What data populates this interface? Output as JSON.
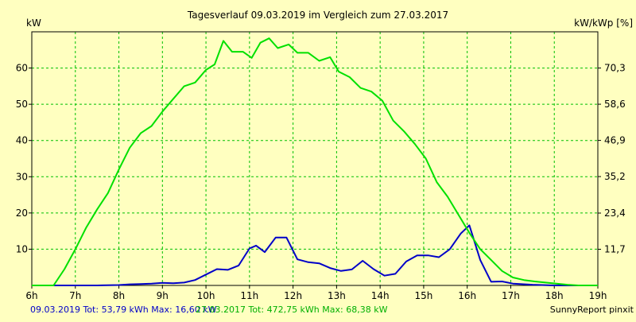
{
  "chart_data": {
    "type": "line",
    "title": "Tagesverlauf 09.03.2019 im Vergleich zum 27.03.2017",
    "ylabel": "kW",
    "y2label": "kW/kWp [%]",
    "xlim": [
      6,
      19
    ],
    "ylim": [
      0,
      70
    ],
    "grid": true,
    "x_ticks": [
      6,
      7,
      8,
      9,
      10,
      11,
      12,
      13,
      14,
      15,
      16,
      17,
      18,
      19
    ],
    "x_tick_labels": [
      "6h",
      "7h",
      "8h",
      "9h",
      "10h",
      "11h",
      "12h",
      "13h",
      "14h",
      "15h",
      "16h",
      "17h",
      "18h",
      "19h"
    ],
    "y_ticks": [
      10,
      20,
      30,
      40,
      50,
      60
    ],
    "y_tick_labels": [
      "10",
      "20",
      "30",
      "40",
      "50",
      "60"
    ],
    "y2_ticks": [
      11.7,
      23.4,
      35.2,
      46.9,
      58.6,
      70.3
    ],
    "y2_tick_labels": [
      "11,7",
      "23,4",
      "35,2",
      "46,9",
      "58,6",
      "70,3"
    ],
    "series": [
      {
        "color": "#0000c8",
        "x": [
          6.0,
          6.5,
          7.0,
          7.5,
          8.0,
          8.25,
          8.5,
          8.75,
          9.0,
          9.25,
          9.5,
          9.75,
          10.0,
          10.25,
          10.5,
          10.75,
          11.0,
          11.15,
          11.35,
          11.6,
          11.85,
          12.1,
          12.35,
          12.6,
          12.85,
          13.1,
          13.35,
          13.6,
          13.85,
          14.1,
          14.35,
          14.6,
          14.85,
          15.1,
          15.35,
          15.6,
          15.85,
          16.05,
          16.3,
          16.55,
          16.8,
          17.05,
          17.5,
          18.0,
          18.5,
          19.0
        ],
        "values": [
          0,
          0,
          0,
          0,
          0.1,
          0.3,
          0.4,
          0.5,
          0.7,
          0.6,
          0.8,
          1.5,
          3.0,
          4.5,
          4.3,
          5.5,
          10.2,
          11.0,
          9.2,
          13.2,
          13.2,
          7.2,
          6.4,
          6.1,
          4.8,
          4.0,
          4.4,
          6.8,
          4.5,
          2.7,
          3.2,
          6.6,
          8.3,
          8.3,
          7.8,
          10.0,
          14.3,
          16.6,
          7.0,
          1.0,
          1.1,
          0.5,
          0.2,
          0,
          0,
          0
        ]
      },
      {
        "color": "#00e000",
        "x": [
          6.0,
          6.5,
          6.75,
          7.0,
          7.25,
          7.5,
          7.75,
          8.0,
          8.25,
          8.5,
          8.75,
          9.0,
          9.25,
          9.5,
          9.75,
          10.0,
          10.2,
          10.4,
          10.6,
          10.85,
          11.05,
          11.25,
          11.45,
          11.65,
          11.9,
          12.1,
          12.35,
          12.6,
          12.85,
          13.05,
          13.3,
          13.55,
          13.8,
          14.05,
          14.3,
          14.55,
          14.8,
          15.05,
          15.3,
          15.55,
          15.8,
          16.05,
          16.3,
          16.55,
          16.8,
          17.05,
          17.3,
          17.55,
          17.8,
          18.05,
          18.3,
          18.55,
          18.8,
          19.0
        ],
        "values": [
          0,
          0,
          4.5,
          10.0,
          16.0,
          21.0,
          25.5,
          32.0,
          38.0,
          42.0,
          44.0,
          48.0,
          51.5,
          55.0,
          56.0,
          59.5,
          61.0,
          67.5,
          64.5,
          64.5,
          62.8,
          67.0,
          68.2,
          65.5,
          66.5,
          64.2,
          64.2,
          62.0,
          63.0,
          59.0,
          57.5,
          54.5,
          53.5,
          51.0,
          45.5,
          42.5,
          39.0,
          35.0,
          28.5,
          24.5,
          19.5,
          14.5,
          10.0,
          7.0,
          4.0,
          2.2,
          1.5,
          1.1,
          0.8,
          0.5,
          0.2,
          0,
          0,
          0
        ]
      }
    ]
  },
  "footer": {
    "series1_text": "09.03.2019 Tot: 53,79 kWh Max: 16,60 kW",
    "series2_text": "27.03.2017 Tot: 472,75 kWh Max: 68,38 kW",
    "brand": "SunnyReport pinxit"
  }
}
